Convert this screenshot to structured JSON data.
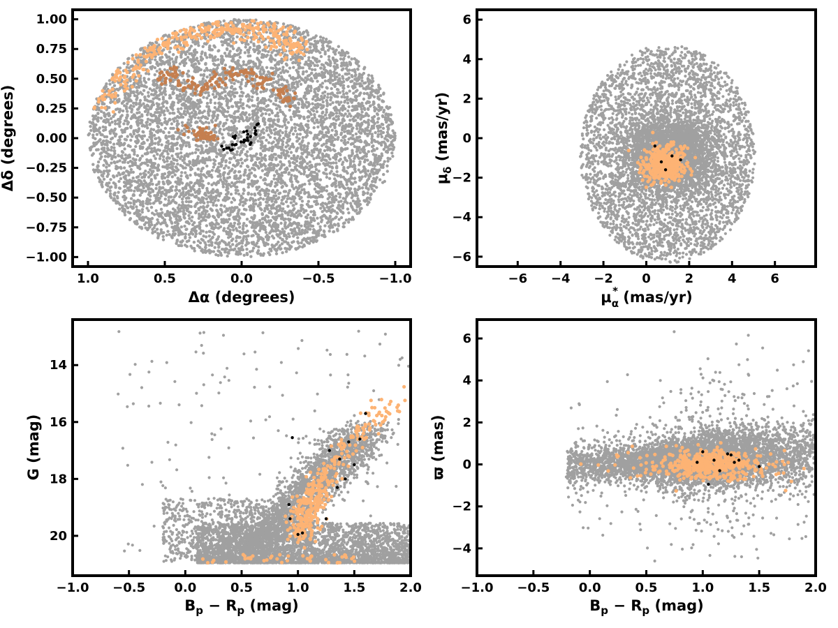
{
  "chart_data": [
    {
      "type": "scatter",
      "panel": "sky-positions",
      "xlabel": "Δα (degrees)",
      "ylabel": "Δδ (degrees)",
      "xlim": [
        1.1,
        -1.1
      ],
      "ylim": [
        -1.08,
        1.08
      ],
      "x_inverted": true,
      "xticks": [
        1.0,
        0.5,
        0.0,
        -0.5,
        -1.0
      ],
      "xtick_labels": [
        "1.0",
        "0.5",
        "0.0",
        "−0.5",
        "−1.0"
      ],
      "yticks": [
        1.0,
        0.75,
        0.5,
        0.25,
        0.0,
        -0.25,
        -0.5,
        -0.75,
        -1.0
      ],
      "ytick_labels": [
        "1.00",
        "0.75",
        "0.50",
        "0.25",
        "0.00",
        "−0.25",
        "−0.50",
        "−0.75",
        "−1.00"
      ],
      "grid": false,
      "series": [
        {
          "color": "#a0a0a0",
          "distribution": "uniform disk",
          "center": [
            0.0,
            0.0
          ],
          "radius": 1.0,
          "count": 6500
        },
        {
          "color": "#fdb374",
          "distribution": "northern arc",
          "points": [
            [
              0.9,
              0.35
            ],
            [
              0.8,
              0.48
            ],
            [
              0.7,
              0.62
            ],
            [
              0.6,
              0.72
            ],
            [
              0.5,
              0.8
            ],
            [
              0.4,
              0.87
            ],
            [
              0.3,
              0.9
            ],
            [
              0.2,
              0.92
            ],
            [
              0.1,
              0.93
            ],
            [
              0.0,
              0.91
            ],
            [
              -0.1,
              0.9
            ],
            [
              -0.2,
              0.86
            ],
            [
              -0.3,
              0.82
            ],
            [
              -0.35,
              0.75
            ]
          ]
        },
        {
          "color": "#c57f4f",
          "distribution": "inner arc",
          "points": [
            [
              0.5,
              0.5
            ],
            [
              0.45,
              0.55
            ],
            [
              0.35,
              0.45
            ],
            [
              0.25,
              0.43
            ],
            [
              0.15,
              0.47
            ],
            [
              0.05,
              0.56
            ],
            [
              -0.05,
              0.55
            ],
            [
              -0.15,
              0.48
            ],
            [
              -0.25,
              0.4
            ],
            [
              -0.3,
              0.33
            ],
            [
              0.3,
              0.05
            ],
            [
              0.25,
              0.03
            ],
            [
              0.2,
              0.02
            ]
          ]
        },
        {
          "color": "#000000",
          "distribution": "central clump",
          "points": [
            [
              0.1,
              -0.08
            ],
            [
              0.05,
              -0.05
            ],
            [
              0.0,
              -0.03
            ],
            [
              -0.05,
              0.0
            ],
            [
              -0.08,
              0.05
            ],
            [
              -0.1,
              0.1
            ],
            [
              0.07,
              -0.1
            ],
            [
              -0.02,
              0.03
            ],
            [
              0.03,
              0.02
            ],
            [
              -0.06,
              -0.02
            ]
          ]
        }
      ]
    },
    {
      "type": "scatter",
      "panel": "proper-motion",
      "xlabel": "μα* (mas/yr)",
      "ylabel": "μδ (mas/yr)",
      "xlim": [
        -7.9,
        7.9
      ],
      "ylim": [
        -6.5,
        6.5
      ],
      "xticks": [
        -6,
        -4,
        -2,
        0,
        2,
        4,
        6
      ],
      "xtick_labels": [
        "−6",
        "−4",
        "−2",
        "0",
        "2",
        "4",
        "6"
      ],
      "yticks": [
        6,
        4,
        2,
        0,
        -2,
        -4,
        -6
      ],
      "ytick_labels": [
        "6",
        "4",
        "2",
        "0",
        "−2",
        "−4",
        "−6"
      ],
      "grid": false,
      "series": [
        {
          "color": "#a0a0a0",
          "distribution": "disk, dense core",
          "center": [
            1.0,
            -0.8
          ],
          "radius": 4.0,
          "count": 6500
        },
        {
          "color": "#fdb374",
          "distribution": "cluster",
          "center": [
            0.9,
            -1.3
          ],
          "spread": [
            0.45,
            0.45
          ],
          "count": 420
        },
        {
          "color": "#000000",
          "distribution": "cluster members",
          "points": [
            [
              0.4,
              -0.4
            ],
            [
              0.7,
              -1.2
            ],
            [
              1.6,
              -1.1
            ],
            [
              0.9,
              -1.6
            ],
            [
              1.2,
              -0.9
            ]
          ]
        }
      ]
    },
    {
      "type": "scatter",
      "panel": "color-magnitude",
      "xlabel": "Bp − Rp (mag)",
      "ylabel": "G (mag)",
      "xlim": [
        -1.0,
        2.0
      ],
      "ylim": [
        21.4,
        12.4
      ],
      "y_inverted": true,
      "xticks": [
        -1.0,
        -0.5,
        0.0,
        0.5,
        1.0,
        1.5,
        2.0
      ],
      "xtick_labels": [
        "−1.0",
        "−0.5",
        "0.0",
        "0.5",
        "1.0",
        "1.5",
        "2.0"
      ],
      "yticks": [
        20,
        18,
        16,
        14
      ],
      "ytick_labels": [
        "20",
        "18",
        "16",
        "14"
      ],
      "grid": false,
      "series": [
        {
          "color": "#a0a0a0",
          "distribution": "field CMD",
          "count": 6000
        },
        {
          "color": "#fdb374",
          "distribution": "cluster sequence",
          "points": [
            [
              1.0,
              20.0
            ],
            [
              1.05,
              19.5
            ],
            [
              1.1,
              19.0
            ],
            [
              1.15,
              18.6
            ],
            [
              1.25,
              18.0
            ],
            [
              1.35,
              17.4
            ],
            [
              1.45,
              16.9
            ],
            [
              1.55,
              16.4
            ],
            [
              1.7,
              15.9
            ],
            [
              1.9,
              15.3
            ]
          ]
        },
        {
          "color": "#000000",
          "distribution": "cluster members",
          "points": [
            [
              1.0,
              19.95
            ],
            [
              1.04,
              19.9
            ],
            [
              0.93,
              19.4
            ],
            [
              1.25,
              19.4
            ],
            [
              0.92,
              18.9
            ],
            [
              1.35,
              18.3
            ],
            [
              1.42,
              18.0
            ],
            [
              1.5,
              17.5
            ],
            [
              1.37,
              17.3
            ],
            [
              1.28,
              17.0
            ],
            [
              1.45,
              16.7
            ],
            [
              0.95,
              16.55
            ],
            [
              1.55,
              16.6
            ],
            [
              1.6,
              15.7
            ]
          ]
        }
      ]
    },
    {
      "type": "scatter",
      "panel": "parallax-color",
      "xlabel": "Bp − Rp (mag)",
      "ylabel": "ϖ (mas)",
      "xlim": [
        -1.0,
        2.0
      ],
      "ylim": [
        -5.3,
        6.9
      ],
      "xticks": [
        -1.0,
        -0.5,
        0.0,
        0.5,
        1.0,
        1.5,
        2.0
      ],
      "xtick_labels": [
        "−1.0",
        "−0.5",
        "0.0",
        "0.5",
        "1.0",
        "1.5",
        "2.0"
      ],
      "yticks": [
        6,
        4,
        2,
        0,
        -2,
        -4
      ],
      "ytick_labels": [
        "6",
        "4",
        "2",
        "0",
        "−2",
        "−4"
      ],
      "grid": false,
      "series": [
        {
          "color": "#a0a0a0",
          "distribution": "field band",
          "count": 6000
        },
        {
          "color": "#fdb374",
          "distribution": "cluster",
          "center": [
            1.05,
            0.0
          ],
          "spread": [
            0.2,
            0.35
          ],
          "count": 450
        },
        {
          "color": "#000000",
          "distribution": "cluster members",
          "points": [
            [
              1.0,
              0.6
            ],
            [
              1.22,
              0.5
            ],
            [
              1.25,
              0.45
            ],
            [
              1.32,
              0.2
            ],
            [
              1.05,
              -0.95
            ],
            [
              1.15,
              -0.3
            ],
            [
              1.5,
              -0.1
            ],
            [
              0.95,
              0.1
            ],
            [
              1.1,
              0.2
            ],
            [
              1.28,
              0.1
            ]
          ]
        }
      ]
    }
  ],
  "labels": {
    "p1_xlabel": "Δα (degrees)",
    "p1_ylabel": "Δδ (degrees)",
    "p2_ylabel_mu": "μ",
    "p2_ylabel_sub": "δ",
    "p2_ylabel_unit": " (mas/yr)",
    "p2_xlabel_mu": "μ",
    "p2_xlabel_sub": "α",
    "p2_xlabel_sup": "*",
    "p2_xlabel_unit": "  (mas/yr)",
    "p3_xlabel_b": "B",
    "p3_xlabel_bsub": "p",
    "p3_xlabel_mid": " − R",
    "p3_xlabel_rsub": "p",
    "p3_xlabel_unit": " (mag)",
    "p3_ylabel": "G (mag)",
    "p4_xlabel_b": "B",
    "p4_xlabel_bsub": "p",
    "p4_xlabel_mid": " − R",
    "p4_xlabel_rsub": "p",
    "p4_xlabel_unit": " (mag)",
    "p4_ylabel": "ϖ (mas)"
  },
  "colors": {
    "field": "#a0a0a0",
    "cluster_light": "#fdb374",
    "cluster_dark": "#c57f4f",
    "members": "#000000"
  }
}
